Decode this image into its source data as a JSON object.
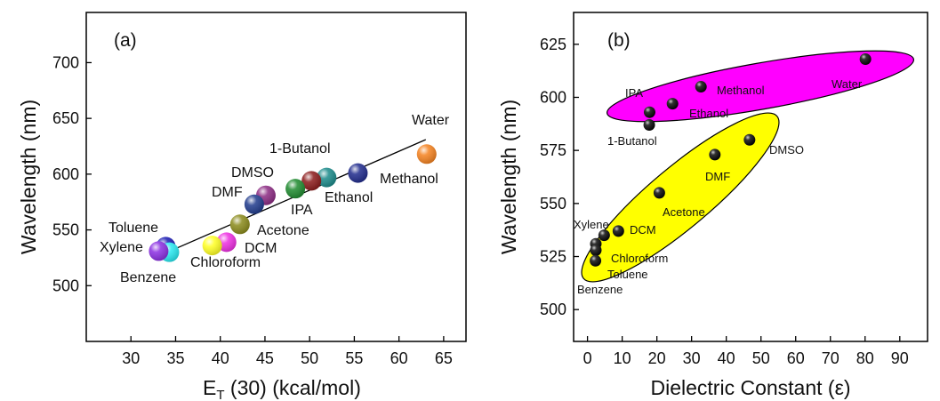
{
  "chart_data": [
    {
      "type": "scatter",
      "panel_label": "(a)",
      "xlabel_main": "E",
      "xlabel_sub": "T",
      "xlabel_rest": " (30) (kcal/mol)",
      "ylabel": "Wavelength (nm)",
      "xlim": [
        25,
        67.5
      ],
      "ylim": [
        450,
        745
      ],
      "xticks": [
        30,
        35,
        40,
        45,
        50,
        55,
        60,
        65
      ],
      "yticks": [
        500,
        550,
        600,
        650,
        700
      ],
      "trend_line": {
        "x": [
          33.5,
          63
        ],
        "y": [
          528,
          631
        ]
      },
      "points": [
        {
          "name": "Water",
          "x": 63.1,
          "y": 618,
          "color": "#f5821f"
        },
        {
          "name": "Methanol",
          "x": 55.4,
          "y": 601,
          "color": "#1f2a8c"
        },
        {
          "name": "Ethanol",
          "x": 51.9,
          "y": 597,
          "color": "#1a8a8a"
        },
        {
          "name": "1-Butanol",
          "x": 50.2,
          "y": 594,
          "color": "#8b1a1a"
        },
        {
          "name": "IPA",
          "x": 48.4,
          "y": 587,
          "color": "#1e8a2e"
        },
        {
          "name": "DMSO",
          "x": 45.1,
          "y": 581,
          "color": "#8b2a82"
        },
        {
          "name": "DMF",
          "x": 43.8,
          "y": 573,
          "color": "#1f3a8c"
        },
        {
          "name": "Acetone",
          "x": 42.2,
          "y": 555,
          "color": "#8a8a1a"
        },
        {
          "name": "DCM",
          "x": 40.7,
          "y": 539,
          "color": "#ee2ee2"
        },
        {
          "name": "Chloroform",
          "x": 39.1,
          "y": 536,
          "color": "#ffff22"
        },
        {
          "name": "Toluene",
          "x": 33.9,
          "y": 535,
          "color": "#1a1ab4"
        },
        {
          "name": "Benzene",
          "x": 34.3,
          "y": 530,
          "color": "#28e8f0"
        },
        {
          "name": "Xylene",
          "x": 33.1,
          "y": 531,
          "color": "#8a2ee2"
        }
      ],
      "labels": {
        "water": "Water",
        "methanol": "Methanol",
        "ethanol": "Ethanol",
        "butanol": "1-Butanol",
        "ipa": "IPA",
        "dmso": "DMSO",
        "dmf": "DMF",
        "acetone": "Acetone",
        "dcm": "DCM",
        "chloroform": "Chloroform",
        "toluene": "Toluene",
        "xylene": "Xylene",
        "benzene": "Benzene"
      }
    },
    {
      "type": "scatter",
      "panel_label": "(b)",
      "xlabel": "Dielectric Constant (ε)",
      "ylabel": "Wavelength (nm)",
      "xlim": [
        -4,
        98
      ],
      "ylim": [
        485,
        640
      ],
      "xticks": [
        0,
        10,
        20,
        30,
        40,
        50,
        60,
        70,
        80,
        90
      ],
      "yticks": [
        500,
        525,
        550,
        575,
        600,
        625
      ],
      "point_color": "#000000",
      "groups": [
        {
          "color": "#ff00ff",
          "members": [
            "Water",
            "Methanol",
            "Ethanol",
            "IPA",
            "1-Butanol"
          ]
        },
        {
          "color": "#ffff00",
          "members": [
            "DMSO",
            "DMF",
            "Acetone",
            "DCM",
            "Xylene",
            "Chloroform",
            "Toluene",
            "Benzene"
          ]
        }
      ],
      "points": [
        {
          "name": "Water",
          "x": 80.1,
          "y": 618
        },
        {
          "name": "Methanol",
          "x": 32.7,
          "y": 605
        },
        {
          "name": "Ethanol",
          "x": 24.5,
          "y": 597
        },
        {
          "name": "IPA",
          "x": 17.9,
          "y": 593
        },
        {
          "name": "1-Butanol",
          "x": 17.8,
          "y": 587
        },
        {
          "name": "DMSO",
          "x": 46.7,
          "y": 580
        },
        {
          "name": "DMF",
          "x": 36.7,
          "y": 573
        },
        {
          "name": "Acetone",
          "x": 20.7,
          "y": 555
        },
        {
          "name": "DCM",
          "x": 8.9,
          "y": 537
        },
        {
          "name": "Chloroform",
          "x": 4.8,
          "y": 535
        },
        {
          "name": "Xylene",
          "x": 2.4,
          "y": 531
        },
        {
          "name": "Toluene",
          "x": 2.4,
          "y": 528
        },
        {
          "name": "Benzene",
          "x": 2.3,
          "y": 523
        }
      ],
      "labels": {
        "water": "Water",
        "methanol": "Methanol",
        "ethanol": "Ethanol",
        "ipa": "IPA",
        "butanol": "1-Butanol",
        "dmso": "DMSO",
        "dmf": "DMF",
        "acetone": "Acetone",
        "dcm": "DCM",
        "chloroform": "Chloroform",
        "xylene": "Xylene",
        "toluene": "Toluene",
        "benzene": "Benzene"
      }
    }
  ]
}
